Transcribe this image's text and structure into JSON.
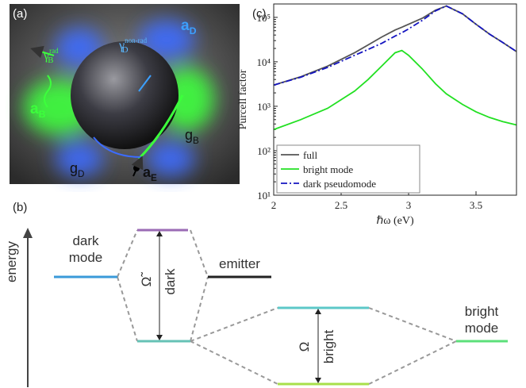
{
  "panels": {
    "a": "(a)",
    "b": "(b)",
    "c": "(c)"
  },
  "image_labels": [
    {
      "main": "a",
      "sub": "D"
    },
    {
      "main": "γ",
      "sup": "rad",
      "sub": "B"
    },
    {
      "main": "γ",
      "sup": "non-rad",
      "sub": "D"
    },
    {
      "main": "a",
      "sub": "B"
    },
    {
      "main": "g",
      "sub": "B"
    },
    {
      "main": "g",
      "sub": "D"
    },
    {
      "main": "a",
      "sub": "E"
    }
  ],
  "diagram": {
    "axis_label": "energy",
    "dark_mode": [
      "dark",
      "mode"
    ],
    "emitter": "emitter",
    "bright_mode": [
      "bright",
      "mode"
    ],
    "dark_splitting": {
      "symbol": "Ω̃",
      "label": "dark"
    },
    "bright_splitting": {
      "symbol": "Ω",
      "label": "bright"
    }
  },
  "chart_data": {
    "type": "line",
    "xlabel": "ℏω (eV)",
    "ylabel": "Purcell factor",
    "log_y": true,
    "legend": "lower left",
    "x": [
      2.0,
      2.2,
      2.4,
      2.6,
      2.7,
      2.8,
      2.9,
      2.95,
      3.0,
      3.1,
      3.2,
      3.28,
      3.4,
      3.5,
      3.6,
      3.7,
      3.8
    ],
    "series": [
      {
        "name": "full",
        "color": "#555555",
        "linestyle": "solid",
        "values": [
          3000,
          4600,
          8000,
          16000,
          24000,
          36000,
          52000,
          60000,
          70000,
          95000,
          145000,
          180000,
          120000,
          70000,
          42000,
          27000,
          17000
        ]
      },
      {
        "name": "bright mode",
        "color": "#22e022",
        "linestyle": "solid",
        "values": [
          300,
          500,
          900,
          2200,
          4000,
          8000,
          16000,
          18000,
          14000,
          7000,
          3200,
          1900,
          1100,
          750,
          560,
          450,
          380
        ]
      },
      {
        "name": "dark pseudomode",
        "color": "#1414c0",
        "linestyle": "dashdot",
        "values": [
          3000,
          4500,
          7500,
          14000,
          19000,
          26000,
          38000,
          45000,
          55000,
          85000,
          140000,
          180000,
          120000,
          70000,
          42000,
          27000,
          17000
        ]
      }
    ],
    "xlim": [
      2,
      3.8
    ],
    "xticks": [
      2,
      2.5,
      3,
      3.5
    ],
    "ylim": [
      10,
      200000
    ],
    "yticks": [
      {
        "value": 10,
        "label": "10¹"
      },
      {
        "value": 100,
        "label": "10²"
      },
      {
        "value": 1000,
        "label": "10³"
      },
      {
        "value": 10000,
        "label": "10⁴"
      },
      {
        "value": 100000,
        "label": "10⁵"
      }
    ]
  }
}
